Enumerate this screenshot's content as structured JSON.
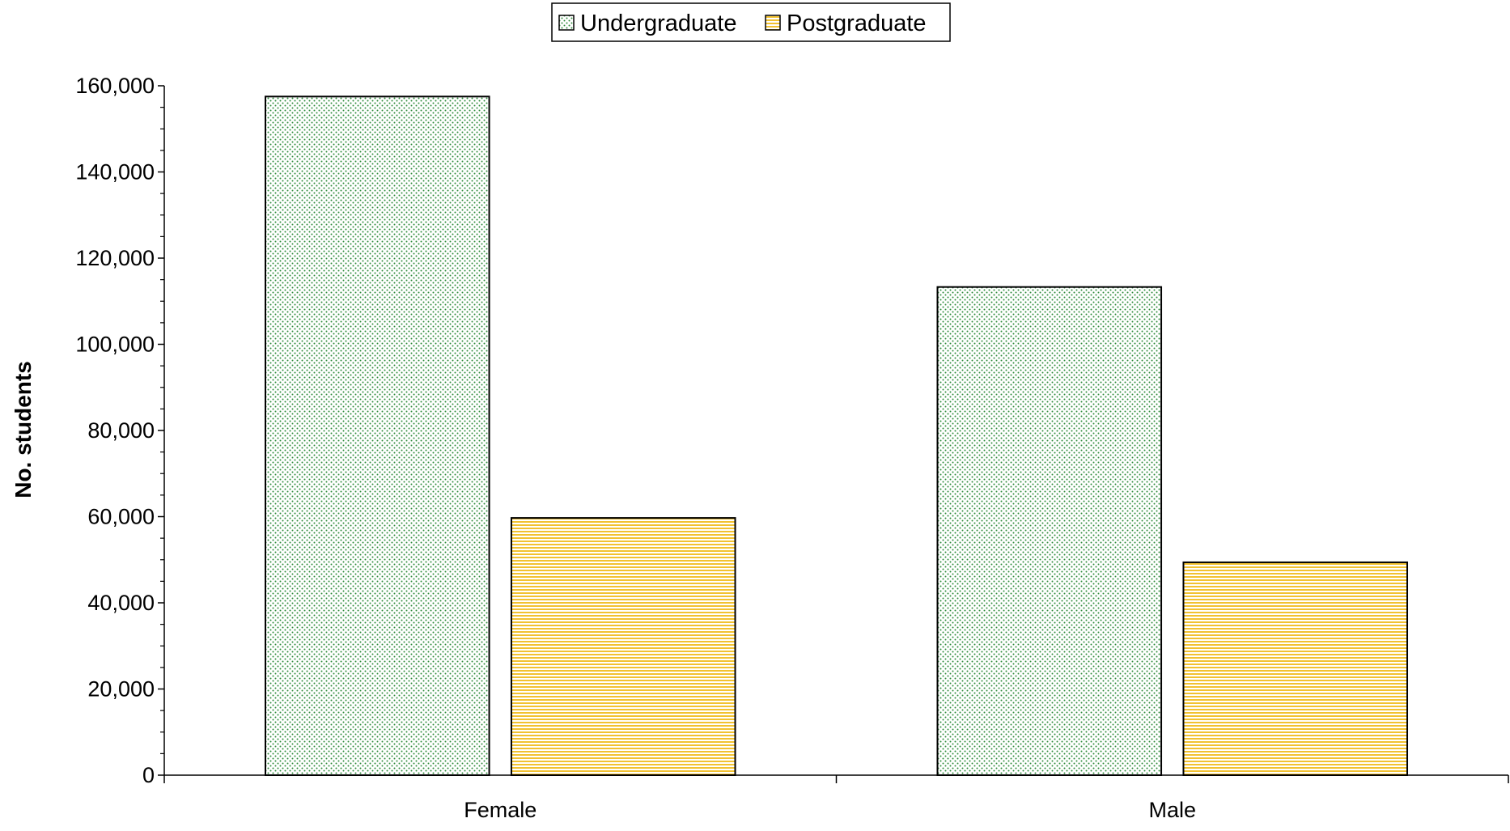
{
  "chart_data": {
    "type": "bar",
    "categories": [
      "Female",
      "Male"
    ],
    "series": [
      {
        "name": "Undergraduate",
        "values": [
          157500,
          113300
        ],
        "color": "#2e8b3a",
        "pattern": "dots"
      },
      {
        "name": "Postgraduate",
        "values": [
          59700,
          49400
        ],
        "color": "#f2c230",
        "pattern": "horizontal-lines"
      }
    ],
    "title": "",
    "xlabel": "",
    "ylabel": "No. students",
    "ylim": [
      0,
      160000
    ],
    "yticks": [
      0,
      20000,
      40000,
      60000,
      80000,
      100000,
      120000,
      140000,
      160000
    ],
    "ytick_labels": [
      "0",
      "20,000",
      "40,000",
      "60,000",
      "80,000",
      "100,000",
      "120,000",
      "140,000",
      "160,000"
    ],
    "grid": false,
    "legend_position": "top-center"
  }
}
